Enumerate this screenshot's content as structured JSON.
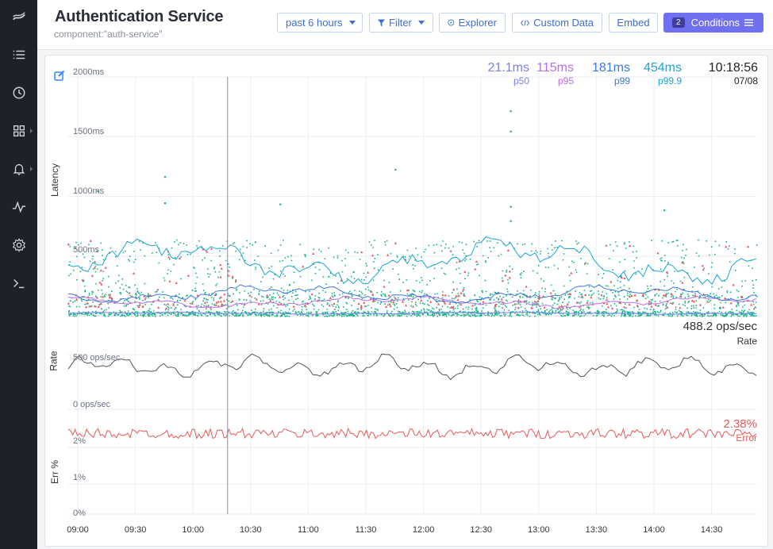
{
  "header": {
    "title": "Authentication Service",
    "subtitle": "component:\"auth-service\"",
    "time_range": "past 6 hours",
    "filter_label": "Filter",
    "explorer_label": "Explorer",
    "custom_data_label": "Custom Data",
    "embed_label": "Embed",
    "conditions_count": "2",
    "conditions_label": "Conditions"
  },
  "sidebar": {
    "items": [
      {
        "icon": "logo-icon"
      },
      {
        "icon": "list-icon"
      },
      {
        "icon": "clock-icon"
      },
      {
        "icon": "dashboard-grid-icon"
      },
      {
        "icon": "bell-icon"
      },
      {
        "icon": "pulse-icon"
      },
      {
        "icon": "gear-icon"
      },
      {
        "icon": "terminal-icon"
      }
    ]
  },
  "stats": {
    "p50": {
      "value": "21.1ms",
      "label": "p50",
      "color": "#7b7ff0"
    },
    "p95": {
      "value": "115ms",
      "label": "p95",
      "color": "#b86ee6"
    },
    "p99": {
      "value": "181ms",
      "label": "p99",
      "color": "#3f78e0"
    },
    "p999": {
      "value": "454ms",
      "label": "p99.9",
      "color": "#1aa6d8"
    },
    "time": {
      "value": "10:18:56",
      "label": "07/08"
    }
  },
  "chart_data": [
    {
      "type": "scatter",
      "ylabel": "Latency",
      "y_ticks": [
        "2000ms",
        "1500ms",
        "1000ms",
        "500ms"
      ],
      "ylim": [
        0,
        2000
      ],
      "x_ticks": [
        "09:00",
        "09:30",
        "10:00",
        "10:30",
        "11:00",
        "11:30",
        "12:00",
        "12:30",
        "13:00",
        "13:30",
        "14:00",
        "14:30"
      ],
      "series": [
        {
          "name": "p50",
          "value_ms": 21.1,
          "color": "#7b7ff0"
        },
        {
          "name": "p95",
          "value_ms": 115,
          "color": "#b86ee6"
        },
        {
          "name": "p99",
          "value_ms": 181,
          "color": "#3f78e0"
        },
        {
          "name": "p99.9",
          "value_ms": 454,
          "color": "#1aa6d8"
        }
      ],
      "points_color": "#19b38a",
      "error_points_color": "#e55a5a",
      "outliers": [
        {
          "x": "09:10",
          "y": 1050
        },
        {
          "x": "09:45",
          "y": 1170
        },
        {
          "x": "09:45",
          "y": 950
        },
        {
          "x": "10:45",
          "y": 940
        },
        {
          "x": "11:45",
          "y": 1230
        },
        {
          "x": "12:45",
          "y": 1720
        },
        {
          "x": "12:45",
          "y": 1550
        },
        {
          "x": "12:45",
          "y": 920
        },
        {
          "x": "12:45",
          "y": 800
        },
        {
          "x": "14:05",
          "y": 890
        }
      ]
    },
    {
      "type": "line",
      "ylabel": "Rate",
      "y_ticks": [
        "500 ops/sec",
        "0 ops/sec"
      ],
      "ylim": [
        0,
        600
      ],
      "current_value": "488.2 ops/sec",
      "current_label": "Rate",
      "approx_value": 480
    },
    {
      "type": "line",
      "ylabel": "Err %",
      "y_ticks": [
        "2%",
        "1%",
        "0%"
      ],
      "ylim": [
        0,
        2.5
      ],
      "current_value": "2.38%",
      "current_label": "Error",
      "approx_value": 2.35
    }
  ],
  "cursor_time": "10:18:56"
}
